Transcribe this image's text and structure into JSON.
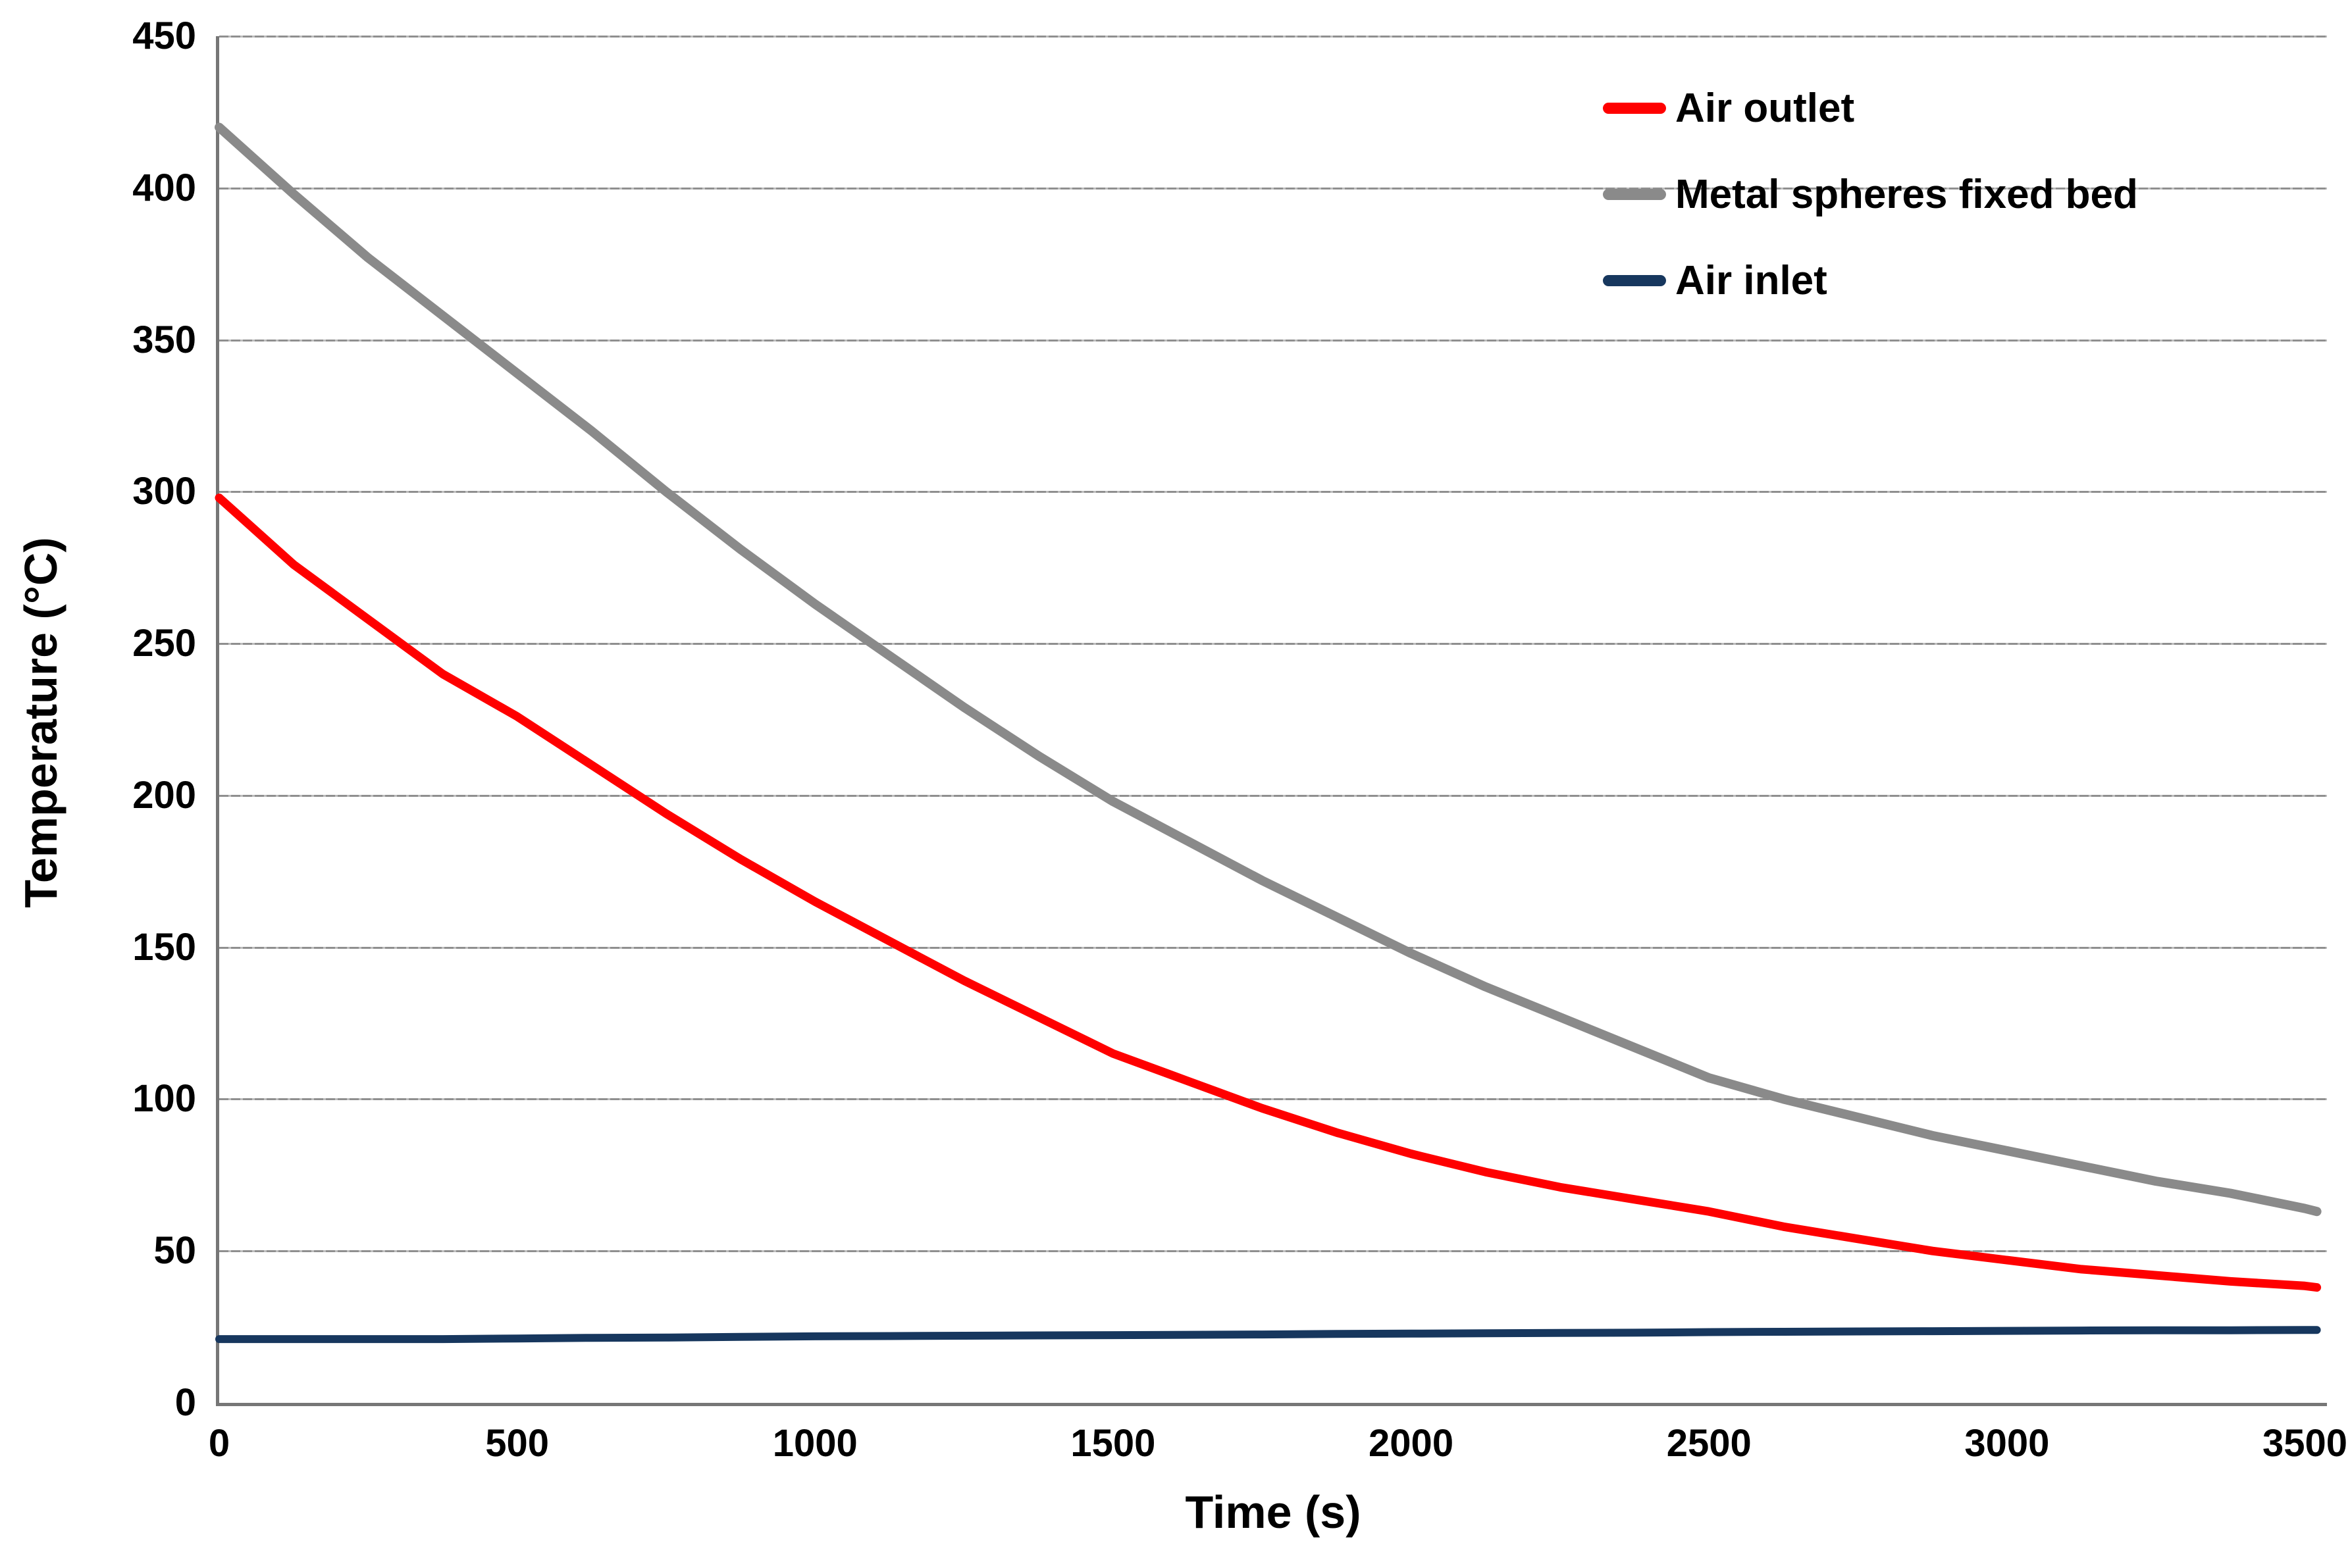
{
  "figure": {
    "background": "#ffffff",
    "text_color": "#000000",
    "grid_color": "#8f8f8f",
    "axis_color": "#767676"
  },
  "legend": {
    "entries": [
      {
        "label": "Air outlet",
        "color": "#ff0000"
      },
      {
        "label": "Metal spheres fixed bed",
        "color": "#8a8a8a"
      },
      {
        "label": "Air inlet",
        "color": "#17375e"
      }
    ]
  },
  "chart_data": {
    "type": "line",
    "title": "",
    "xlabel": "Time (s)",
    "ylabel": "Temperature (°C)",
    "xlim": [
      0,
      3540
    ],
    "ylim": [
      0,
      450
    ],
    "x_ticks": [
      0,
      500,
      1000,
      1500,
      2000,
      2500,
      3000,
      3500
    ],
    "y_ticks": [
      0,
      50,
      100,
      150,
      200,
      250,
      300,
      350,
      400,
      450
    ],
    "grid": "horizontal",
    "legend_position": "top-right",
    "x": [
      0,
      125,
      250,
      375,
      500,
      625,
      750,
      875,
      1000,
      1125,
      1250,
      1375,
      1500,
      1625,
      1750,
      1875,
      2000,
      2125,
      2250,
      2375,
      2500,
      2625,
      2750,
      2875,
      3000,
      3125,
      3250,
      3375,
      3500,
      3520
    ],
    "series": [
      {
        "name": "Air outlet",
        "color": "#ff0000",
        "stroke_width": 13,
        "values": [
          298,
          276,
          258,
          240,
          226,
          210,
          194,
          179,
          165,
          152,
          139,
          127,
          115,
          106,
          97,
          89,
          82,
          76,
          71,
          67,
          63,
          58,
          54,
          50,
          47,
          44,
          42,
          40,
          38.5,
          38
        ]
      },
      {
        "name": "Metal spheres fixed bed",
        "color": "#8a8a8a",
        "stroke_width": 14,
        "values": [
          420,
          398,
          377,
          358,
          339,
          320,
          300,
          281,
          263,
          246,
          229,
          213,
          198,
          185,
          172,
          160,
          148,
          137,
          127,
          117,
          107,
          100,
          94,
          88,
          83,
          78,
          73,
          69,
          64,
          63
        ]
      },
      {
        "name": "Air inlet",
        "color": "#17375e",
        "stroke_width": 12,
        "values": [
          21,
          21,
          21,
          21,
          21.2,
          21.4,
          21.5,
          21.7,
          21.9,
          22,
          22.1,
          22.2,
          22.3,
          22.4,
          22.5,
          22.7,
          22.8,
          22.9,
          23,
          23.1,
          23.3,
          23.4,
          23.5,
          23.6,
          23.7,
          23.8,
          23.9,
          23.9,
          24,
          24
        ]
      }
    ]
  }
}
